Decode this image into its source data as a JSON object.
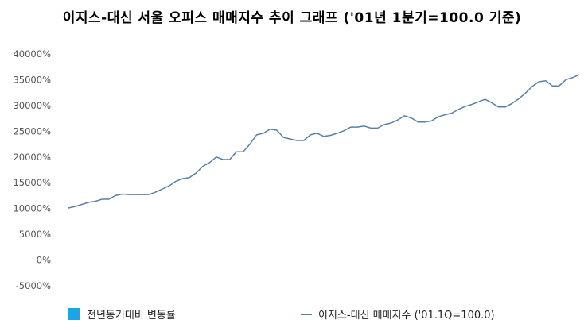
{
  "chart_data": {
    "type": "line",
    "title": "이지스-대신 서울 오피스 매매지수 추이 그래프 ('01년 1분기=100.0 기준)",
    "y_ticks": [
      "40000%",
      "35000%",
      "30000%",
      "25000%",
      "20000%",
      "15000%",
      "10000%",
      "5000%",
      "0%",
      "-5000%"
    ],
    "ylim": [
      -5000,
      40000
    ],
    "grid": false,
    "legend_position": "bottom",
    "series": [
      {
        "name": "전년동기대비 변동률",
        "type": "bar",
        "color": "#1aa6e6",
        "values": []
      },
      {
        "name": "이지스-대신 매매지수 ('01.1Q=100.0)",
        "type": "line",
        "color": "#5b80a8",
        "values": [
          10100,
          10400,
          10800,
          11200,
          11400,
          11800,
          11800,
          12500,
          12800,
          12700,
          12700,
          12700,
          12700,
          13200,
          13800,
          14400,
          15300,
          15800,
          16000,
          16900,
          18200,
          18900,
          20000,
          19500,
          19500,
          21000,
          21000,
          22500,
          24300,
          24600,
          25400,
          25200,
          23800,
          23500,
          23200,
          23200,
          24300,
          24600,
          24000,
          24200,
          24600,
          25100,
          25800,
          25800,
          26000,
          25600,
          25600,
          26300,
          26600,
          27200,
          28000,
          27600,
          26800,
          26800,
          27000,
          27800,
          28200,
          28500,
          29200,
          29800,
          30200,
          30700,
          31200,
          30500,
          29700,
          29700,
          30400,
          31300,
          32400,
          33700,
          34600,
          34800,
          33800,
          33800,
          35000,
          35400,
          36000
        ]
      }
    ]
  }
}
